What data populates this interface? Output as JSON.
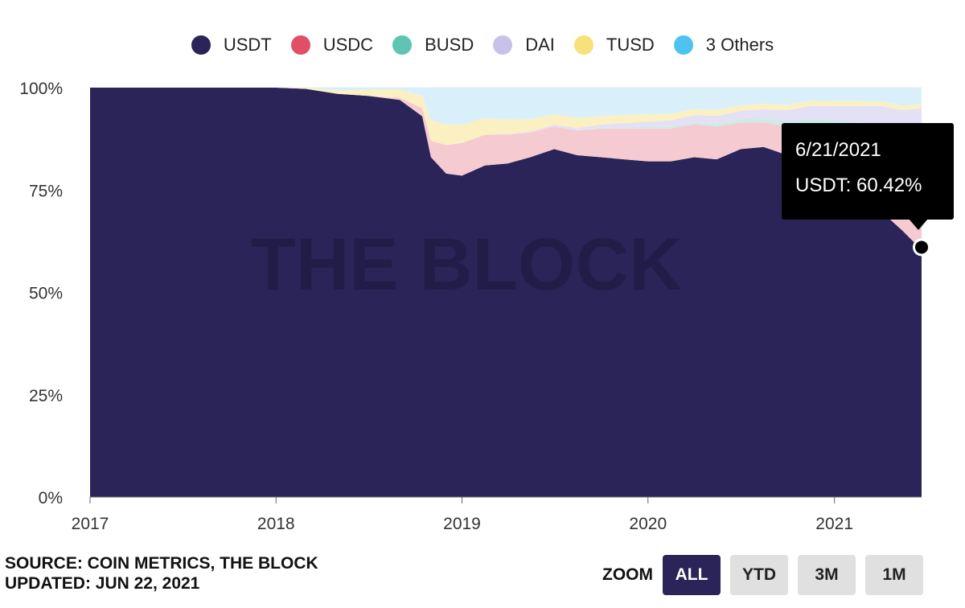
{
  "legend": [
    {
      "label": "USDT",
      "color": "#2a2458"
    },
    {
      "label": "USDC",
      "color": "#e04f67"
    },
    {
      "label": "BUSD",
      "color": "#5fc4b0"
    },
    {
      "label": "DAI",
      "color": "#c8c2e8"
    },
    {
      "label": "TUSD",
      "color": "#f7e27a"
    },
    {
      "label": "3 Others",
      "color": "#4fc3f0"
    }
  ],
  "watermark": "THE BLOCK",
  "tooltip": {
    "date": "6/21/2021",
    "text": "USDT: 60.42%"
  },
  "footer": {
    "source": "SOURCE: COIN METRICS, THE BLOCK",
    "updated": "UPDATED: JUN 22, 2021"
  },
  "zoom": {
    "label": "ZOOM",
    "buttons": [
      "ALL",
      "YTD",
      "3M",
      "1M"
    ],
    "active": "ALL"
  },
  "chart_data": {
    "type": "area",
    "stacked": true,
    "x_tick_labels": [
      "2017",
      "2018",
      "2019",
      "2020",
      "2021"
    ],
    "y_tick_labels": [
      "100%",
      "75%",
      "50%",
      "25%",
      "0%"
    ],
    "ylim": [
      0,
      100
    ],
    "xlim": [
      "2017-01-01",
      "2021-06-21"
    ],
    "x": [
      "2017-01-01",
      "2017-06-01",
      "2018-01-01",
      "2018-03-01",
      "2018-05-01",
      "2018-07-01",
      "2018-09-01",
      "2018-10-15",
      "2018-11-01",
      "2018-12-01",
      "2019-01-01",
      "2019-02-15",
      "2019-04-01",
      "2019-05-15",
      "2019-07-01",
      "2019-08-15",
      "2019-10-01",
      "2019-11-15",
      "2020-01-01",
      "2020-02-15",
      "2020-04-01",
      "2020-05-15",
      "2020-07-01",
      "2020-08-15",
      "2020-10-01",
      "2020-11-15",
      "2021-01-01",
      "2021-02-15",
      "2021-04-01",
      "2021-05-15",
      "2021-06-21"
    ],
    "series": [
      {
        "name": "USDT",
        "color": "#2a2458",
        "values": [
          100,
          100,
          100,
          99.7,
          98.5,
          98,
          97,
          93,
          83,
          79,
          78.5,
          81,
          81.5,
          83,
          85,
          83.5,
          83,
          82.5,
          82,
          82,
          83,
          82.5,
          85,
          85.5,
          83.5,
          82.5,
          79,
          74,
          70,
          65,
          60.42
        ]
      },
      {
        "name": "USDC",
        "color": "#f5cad0",
        "values": [
          0,
          0,
          0,
          0,
          0,
          0,
          0.5,
          2,
          4,
          7,
          8,
          7.5,
          7,
          6,
          5.5,
          6,
          7,
          7.5,
          8,
          8,
          8,
          8,
          6.5,
          6,
          7,
          8.5,
          11,
          15,
          18,
          21,
          25
        ]
      },
      {
        "name": "BUSD",
        "color": "#cdebe4",
        "values": [
          0,
          0,
          0,
          0,
          0,
          0,
          0,
          0,
          0,
          0,
          0,
          0,
          0,
          0,
          0,
          0,
          0.2,
          0.3,
          0.5,
          0.5,
          0.5,
          0.6,
          0.8,
          1,
          1.2,
          1.5,
          2,
          2.5,
          3,
          3.5,
          4
        ]
      },
      {
        "name": "DAI",
        "color": "#e4e0f5",
        "values": [
          0,
          0,
          0,
          0,
          0,
          0,
          0,
          0,
          0,
          0,
          0,
          0,
          0.2,
          0.3,
          0.5,
          0.6,
          0.8,
          1,
          1.2,
          1.5,
          1.8,
          2,
          2,
          2.2,
          2.8,
          3,
          3.5,
          4,
          4.5,
          5,
          5.5
        ]
      },
      {
        "name": "TUSD",
        "color": "#fbf0c2",
        "values": [
          0,
          0,
          0,
          0.3,
          0.8,
          1.5,
          2,
          3,
          5,
          5,
          4.5,
          4,
          3.5,
          3,
          2.5,
          2.5,
          2,
          2,
          1.8,
          1.6,
          1.5,
          1.5,
          1.4,
          1.4,
          1.3,
          1.3,
          1.2,
          1.2,
          1.1,
          1.1,
          1.1
        ]
      },
      {
        "name": "3 Others",
        "color": "#d9f0fb",
        "values": [
          0,
          0,
          0,
          0,
          0.7,
          0.5,
          0.5,
          2,
          8,
          9,
          9,
          7.5,
          7.8,
          7.7,
          6.5,
          7.4,
          7,
          6.7,
          6.5,
          6.4,
          5.2,
          5.4,
          4.3,
          4,
          4.2,
          3.2,
          3.3,
          3.3,
          3.4,
          4.4,
          3.98
        ]
      }
    ],
    "highlight": {
      "date": "2021-06-21",
      "series": "USDT",
      "value": 60.42
    }
  }
}
